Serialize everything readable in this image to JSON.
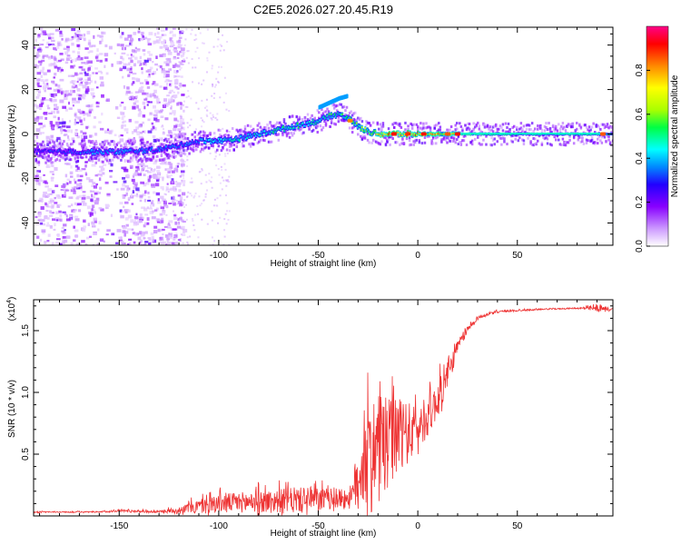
{
  "figure": {
    "title": "C2E5.2026.027.20.45.R19"
  },
  "chart_data": [
    {
      "type": "heatmap",
      "title": "C2E5.2026.027.20.45.R19",
      "xlabel": "Height of straight line (km)",
      "ylabel": "Frequency (Hz)",
      "xlim": [
        -193,
        98
      ],
      "ylim": [
        -50,
        48
      ],
      "xticks": [
        -150,
        -100,
        -50,
        0,
        50
      ],
      "yticks": [
        -40,
        -20,
        0,
        20,
        40
      ],
      "colorbar": {
        "label": "Normalized spectral amplitude",
        "range": [
          0.0,
          1.0
        ],
        "ticks": [
          0.0,
          0.2,
          0.4,
          0.6,
          0.8
        ],
        "colors": [
          "#ffffff",
          "#cc99ff",
          "#8800ff",
          "#2200ff",
          "#0088ff",
          "#00ffff",
          "#00ff44",
          "#aaff00",
          "#ffff00",
          "#ff8800",
          "#ff0000",
          "#ff0088"
        ]
      },
      "ridge": {
        "x": [
          -190,
          -170,
          -150,
          -130,
          -120,
          -110,
          -100,
          -90,
          -80,
          -70,
          -60,
          -50,
          -45,
          -40,
          -35,
          -30,
          -25,
          -20,
          -10,
          0,
          10,
          20,
          30,
          50,
          70,
          90,
          98
        ],
        "y": [
          -8,
          -8,
          -8,
          -7,
          -5,
          -3,
          -3,
          -2,
          0,
          2,
          4,
          6,
          8,
          9,
          7,
          3,
          1,
          0,
          0,
          0,
          0,
          0,
          0,
          0,
          0,
          0,
          0
        ],
        "amplitude": [
          0.3,
          0.35,
          0.4,
          0.35,
          0.35,
          0.4,
          0.45,
          0.45,
          0.45,
          0.5,
          0.5,
          0.45,
          0.5,
          0.5,
          0.6,
          0.55,
          0.65,
          0.8,
          0.8,
          0.8,
          0.75,
          0.7,
          0.55,
          0.5,
          0.5,
          0.5,
          0.55
        ]
      },
      "branch": {
        "x": [
          -50,
          -45,
          -40,
          -36
        ],
        "y": [
          12,
          14,
          16,
          17
        ]
      }
    },
    {
      "type": "line",
      "xlabel": "Height of straight line (km)",
      "ylabel": "SNR (10 * v/v)",
      "exponent_label": "(x10",
      "exponent_power": "4",
      "exponent_close": ")",
      "xlim": [
        -193,
        98
      ],
      "ylim": [
        0,
        1.75
      ],
      "xticks": [
        -150,
        -100,
        -50,
        0,
        50
      ],
      "yticks": [
        0.5,
        1.0,
        1.5
      ],
      "ytick_labels": [
        "0.5",
        "1.0",
        "1.5"
      ],
      "color": "#ee3333",
      "envelope": {
        "x": [
          -193,
          -160,
          -150,
          -130,
          -120,
          -110,
          -100,
          -80,
          -60,
          -50,
          -40,
          -33,
          -30,
          -25,
          -20,
          -15,
          -10,
          -5,
          0,
          5,
          10,
          15,
          20,
          25,
          30,
          40,
          60,
          80,
          90,
          98
        ],
        "base": [
          0.03,
          0.03,
          0.04,
          0.03,
          0.04,
          0.06,
          0.08,
          0.09,
          0.1,
          0.1,
          0.12,
          0.12,
          0.25,
          0.35,
          0.45,
          0.5,
          0.55,
          0.6,
          0.65,
          0.75,
          0.9,
          1.1,
          1.35,
          1.5,
          1.6,
          1.65,
          1.67,
          1.68,
          1.67,
          1.67
        ],
        "amplitude": [
          0.01,
          0.01,
          0.02,
          0.02,
          0.05,
          0.12,
          0.15,
          0.18,
          0.2,
          0.2,
          0.15,
          0.2,
          0.6,
          0.8,
          0.8,
          0.7,
          0.6,
          0.5,
          0.35,
          0.3,
          0.3,
          0.2,
          0.12,
          0.06,
          0.03,
          0.02,
          0.01,
          0.01,
          0.05,
          0.02
        ]
      }
    }
  ]
}
